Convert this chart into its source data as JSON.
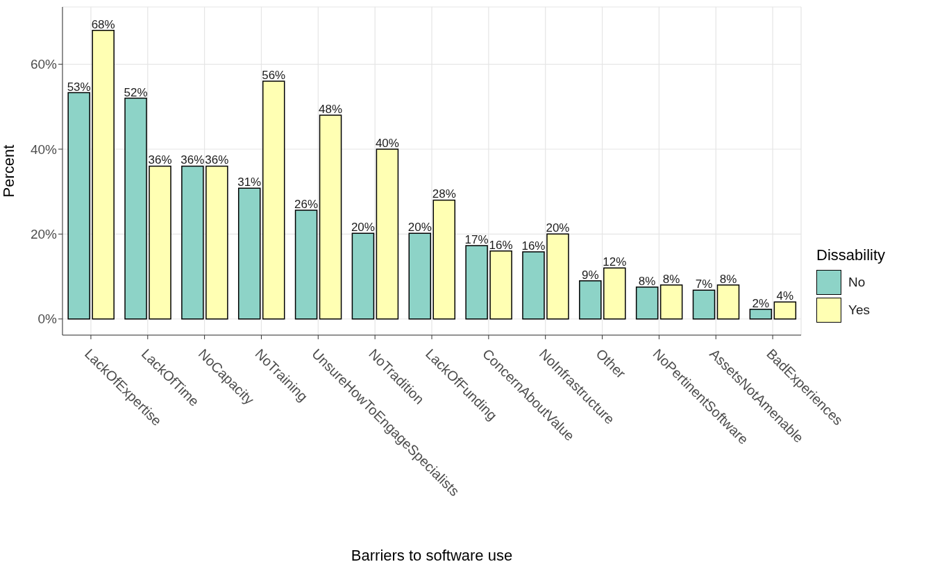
{
  "chart_data": {
    "type": "bar",
    "xlabel": "Barriers to software use",
    "ylabel": "Percent",
    "legend_title": "Dissability",
    "legend": "right",
    "grid": true,
    "categories": [
      "LackOfExpertise",
      "LackOfTime",
      "NoCapacity",
      "NoTraining",
      "UnsureHowToEngageSpecialists",
      "NoTradition",
      "LackOfFunding",
      "ConcernAboutValue",
      "NoInfrastructure",
      "Other",
      "NoPertinentSoftware",
      "AssetsNotAmenable",
      "BadExperiences"
    ],
    "ylim": [
      -3.8,
      73.5
    ],
    "yticks": [
      {
        "value": 0,
        "label": "0%"
      },
      {
        "value": 20,
        "label": "20%"
      },
      {
        "value": 40,
        "label": "40%"
      },
      {
        "value": 60,
        "label": "60%"
      }
    ],
    "series": [
      {
        "name": "No",
        "color": "#8dd3c7",
        "values": [
          53.3,
          52,
          36,
          30.8,
          25.6,
          20.2,
          20.2,
          17.3,
          15.8,
          9,
          7.5,
          6.8,
          2.3
        ],
        "value_labels": [
          "53%",
          "52%",
          "36%",
          "31%",
          "26%",
          "20%",
          "20%",
          "17%",
          "16%",
          "9%",
          "8%",
          "7%",
          "2%"
        ]
      },
      {
        "name": "Yes",
        "color": "#ffffb3",
        "values": [
          68,
          36,
          36,
          56,
          48,
          40,
          28,
          16,
          20,
          12,
          8,
          8,
          4
        ],
        "value_labels": [
          "68%",
          "36%",
          "36%",
          "56%",
          "48%",
          "40%",
          "28%",
          "16%",
          "20%",
          "12%",
          "8%",
          "8%",
          "4%"
        ]
      }
    ]
  }
}
